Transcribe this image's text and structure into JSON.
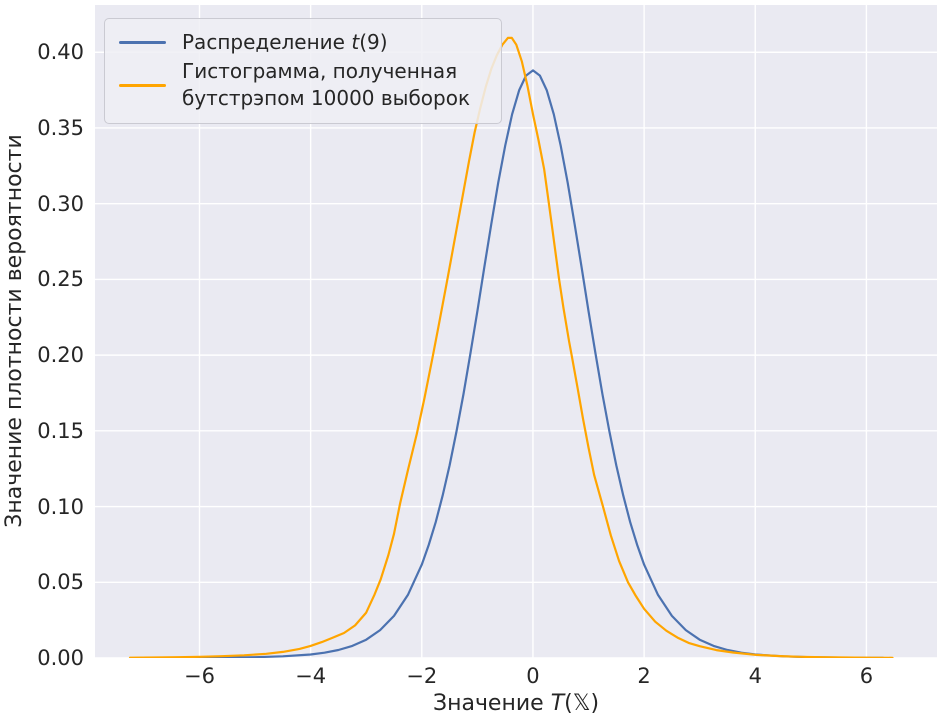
{
  "chart_data": {
    "type": "line",
    "title": "",
    "xlabel": "Значение T(𝕏)",
    "ylabel": "Значение плотности вероятности",
    "xlim": [
      -7.88,
      7.27
    ],
    "ylim": [
      0,
      0.4312
    ],
    "grid": true,
    "grid_color": "#ffffff",
    "panel_background": "#eaeaf2",
    "legend_position": "upper left",
    "x_ticks": [
      -6,
      -4,
      -2,
      0,
      2,
      4,
      6
    ],
    "x_tick_labels": [
      "−6",
      "−4",
      "−2",
      "0",
      "2",
      "4",
      "6"
    ],
    "y_ticks": [
      0,
      0.05,
      0.1,
      0.15,
      0.2,
      0.25,
      0.3,
      0.35,
      0.4
    ],
    "y_tick_labels": [
      "0.00",
      "0.05",
      "0.10",
      "0.15",
      "0.20",
      "0.25",
      "0.30",
      "0.35",
      "0.40"
    ],
    "series": [
      {
        "name": "Распределение t(9)",
        "color": "#4c72b0",
        "peak": [
          0,
          0.388
        ],
        "points": [
          [
            -7,
            3e-05
          ],
          [
            -6.5,
            6e-05
          ],
          [
            -6,
            0.00012
          ],
          [
            -5.5,
            0.00025
          ],
          [
            -5,
            0.0005
          ],
          [
            -4.5,
            0.0011
          ],
          [
            -4,
            0.0023
          ],
          [
            -3.75,
            0.0035
          ],
          [
            -3.5,
            0.0053
          ],
          [
            -3.25,
            0.008
          ],
          [
            -3,
            0.0121
          ],
          [
            -2.75,
            0.0184
          ],
          [
            -2.5,
            0.0278
          ],
          [
            -2.25,
            0.0417
          ],
          [
            -2,
            0.0617
          ],
          [
            -1.875,
            0.0746
          ],
          [
            -1.75,
            0.0897
          ],
          [
            -1.625,
            0.1072
          ],
          [
            -1.5,
            0.1272
          ],
          [
            -1.375,
            0.1496
          ],
          [
            -1.25,
            0.1743
          ],
          [
            -1.125,
            0.201
          ],
          [
            -1,
            0.2291
          ],
          [
            -0.875,
            0.258
          ],
          [
            -0.75,
            0.2866
          ],
          [
            -0.625,
            0.3138
          ],
          [
            -0.5,
            0.3383
          ],
          [
            -0.375,
            0.359
          ],
          [
            -0.25,
            0.3748
          ],
          [
            -0.125,
            0.3846
          ],
          [
            0,
            0.388
          ],
          [
            0.125,
            0.3846
          ],
          [
            0.25,
            0.3748
          ],
          [
            0.375,
            0.359
          ],
          [
            0.5,
            0.3383
          ],
          [
            0.625,
            0.3138
          ],
          [
            0.75,
            0.2866
          ],
          [
            0.875,
            0.258
          ],
          [
            1,
            0.2291
          ],
          [
            1.125,
            0.201
          ],
          [
            1.25,
            0.1743
          ],
          [
            1.375,
            0.1496
          ],
          [
            1.5,
            0.1272
          ],
          [
            1.625,
            0.1072
          ],
          [
            1.75,
            0.0897
          ],
          [
            1.875,
            0.0746
          ],
          [
            2,
            0.0617
          ],
          [
            2.25,
            0.0417
          ],
          [
            2.5,
            0.0278
          ],
          [
            2.75,
            0.0184
          ],
          [
            3,
            0.0121
          ],
          [
            3.25,
            0.008
          ],
          [
            3.5,
            0.0053
          ],
          [
            3.75,
            0.0035
          ],
          [
            4,
            0.0023
          ],
          [
            4.5,
            0.0011
          ],
          [
            5,
            0.0005
          ],
          [
            5.5,
            0.00025
          ],
          [
            6,
            0.00012
          ],
          [
            6.3,
            8e-05
          ]
        ]
      },
      {
        "name": "Гистограмма, полученная бутстрэпом 10000 выборок",
        "color": "#ffa500",
        "peak": [
          -0.42,
          0.41
        ],
        "points": [
          [
            -7.25,
            0.0002
          ],
          [
            -6.8,
            0.0003
          ],
          [
            -6.4,
            0.0005
          ],
          [
            -6,
            0.0008
          ],
          [
            -5.6,
            0.0012
          ],
          [
            -5.2,
            0.0018
          ],
          [
            -4.8,
            0.0028
          ],
          [
            -4.5,
            0.004
          ],
          [
            -4.2,
            0.006
          ],
          [
            -4,
            0.008
          ],
          [
            -3.8,
            0.0105
          ],
          [
            -3.6,
            0.0135
          ],
          [
            -3.4,
            0.0165
          ],
          [
            -3.2,
            0.0215
          ],
          [
            -3,
            0.03
          ],
          [
            -2.85,
            0.042
          ],
          [
            -2.74,
            0.052
          ],
          [
            -2.6,
            0.068
          ],
          [
            -2.5,
            0.082
          ],
          [
            -2.39,
            0.102
          ],
          [
            -2.25,
            0.124
          ],
          [
            -2.09,
            0.148
          ],
          [
            -1.95,
            0.172
          ],
          [
            -1.81,
            0.198
          ],
          [
            -1.7,
            0.219
          ],
          [
            -1.55,
            0.248
          ],
          [
            -1.45,
            0.268
          ],
          [
            -1.3,
            0.298
          ],
          [
            -1.15,
            0.328
          ],
          [
            -1.05,
            0.347
          ],
          [
            -0.95,
            0.363
          ],
          [
            -0.85,
            0.377
          ],
          [
            -0.75,
            0.389
          ],
          [
            -0.65,
            0.398
          ],
          [
            -0.55,
            0.405
          ],
          [
            -0.45,
            0.4095
          ],
          [
            -0.38,
            0.4095
          ],
          [
            -0.3,
            0.405
          ],
          [
            -0.2,
            0.394
          ],
          [
            -0.1,
            0.378
          ],
          [
            0,
            0.359
          ],
          [
            0.1,
            0.342
          ],
          [
            0.2,
            0.323
          ],
          [
            0.28,
            0.302
          ],
          [
            0.35,
            0.283
          ],
          [
            0.47,
            0.25
          ],
          [
            0.55,
            0.231
          ],
          [
            0.65,
            0.209
          ],
          [
            0.7,
            0.199
          ],
          [
            0.8,
            0.179
          ],
          [
            0.9,
            0.158
          ],
          [
            1,
            0.139
          ],
          [
            1.1,
            0.121
          ],
          [
            1.26,
            0.1
          ],
          [
            1.4,
            0.081
          ],
          [
            1.55,
            0.064
          ],
          [
            1.71,
            0.05
          ],
          [
            1.85,
            0.041
          ],
          [
            2,
            0.0325
          ],
          [
            2.2,
            0.024
          ],
          [
            2.4,
            0.018
          ],
          [
            2.6,
            0.0135
          ],
          [
            2.8,
            0.01
          ],
          [
            3,
            0.0078
          ],
          [
            3.3,
            0.0052
          ],
          [
            3.6,
            0.0036
          ],
          [
            4,
            0.0021
          ],
          [
            4.4,
            0.0013
          ],
          [
            4.8,
            0.0008
          ],
          [
            5.2,
            0.0005
          ],
          [
            5.6,
            0.0003
          ],
          [
            6,
            0.0002
          ],
          [
            6.47,
            0.0001
          ]
        ]
      }
    ]
  },
  "labels": {
    "xlabel_prefix": "Значение ",
    "xlabel_var": "T",
    "xlabel_suffix": "(𝕏)",
    "ylabel": "Значение плотности вероятности",
    "legend": {
      "item1_prefix": "Распределение ",
      "item1_var": "t",
      "item1_suffix": "(9)",
      "item2_line1": "Гистограмма, полученная",
      "item2_line2": "бутстрэпом 10000 выборок"
    }
  }
}
